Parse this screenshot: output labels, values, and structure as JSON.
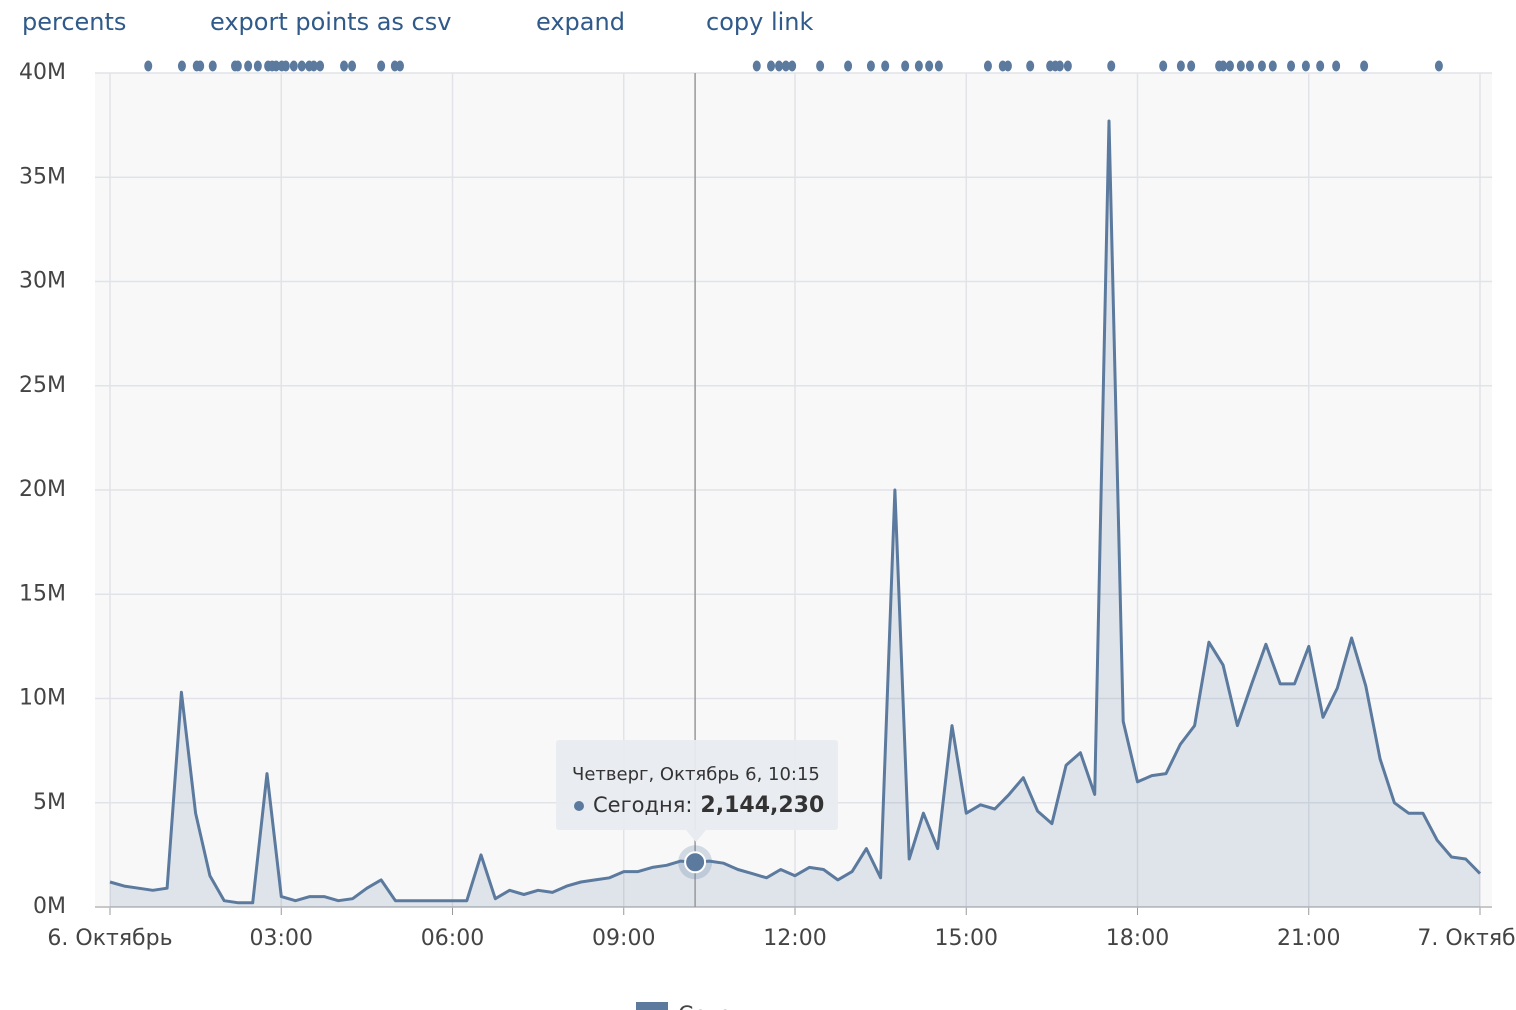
{
  "links": [
    "percents",
    "export points as csv",
    "expand",
    "copy link"
  ],
  "chart_data": {
    "type": "area",
    "x": [
      0,
      0.25,
      0.5,
      0.75,
      1,
      1.25,
      1.5,
      1.75,
      2,
      2.25,
      2.5,
      2.75,
      3,
      3.25,
      3.5,
      3.75,
      4,
      4.25,
      4.5,
      4.75,
      5,
      5.25,
      5.5,
      5.75,
      6,
      6.25,
      6.5,
      6.75,
      7,
      7.25,
      7.5,
      7.75,
      8,
      8.25,
      8.5,
      8.75,
      9,
      9.25,
      9.5,
      9.75,
      10,
      10.25,
      10.5,
      10.75,
      11,
      11.25,
      11.5,
      11.75,
      12,
      12.25,
      12.5,
      12.75,
      13,
      13.25,
      13.5,
      13.75,
      14,
      14.25,
      14.5,
      14.75,
      15,
      15.25,
      15.5,
      15.75,
      16,
      16.25,
      16.5,
      16.75,
      17,
      17.25,
      17.5,
      17.75,
      18,
      18.25,
      18.5,
      18.75,
      19,
      19.25,
      19.5,
      19.75,
      20,
      20.25,
      20.5,
      20.75,
      21,
      21.25,
      21.5,
      21.75,
      22,
      22.25,
      22.5,
      22.75,
      23,
      23.25,
      23.5,
      23.75,
      24
    ],
    "series": [
      {
        "name": "Сегодня",
        "color": "#5b7a9e",
        "values": [
          1200000,
          1000000,
          900000,
          800000,
          900000,
          10300000,
          4500000,
          1500000,
          300000,
          200000,
          200000,
          6400000,
          500000,
          300000,
          500000,
          500000,
          300000,
          400000,
          900000,
          1300000,
          300000,
          300000,
          300000,
          300000,
          300000,
          300000,
          2500000,
          400000,
          800000,
          600000,
          800000,
          700000,
          1000000,
          1200000,
          1300000,
          1400000,
          1700000,
          1700000,
          1900000,
          2000000,
          2200000,
          2144230,
          2200000,
          2100000,
          1800000,
          1600000,
          1400000,
          1800000,
          1500000,
          1900000,
          1800000,
          1300000,
          1700000,
          2800000,
          1400000,
          20000000,
          2300000,
          4500000,
          2800000,
          8700000,
          4500000,
          4900000,
          4700000,
          5400000,
          6200000,
          4600000,
          4000000,
          6800000,
          7400000,
          5400000,
          37700000,
          8900000,
          6000000,
          6300000,
          6400000,
          7800000,
          8700000,
          12700000,
          11600000,
          8700000,
          10700000,
          12600000,
          10700000,
          10700000,
          12500000,
          9100000,
          10500000,
          12900000,
          10600000,
          7100000,
          5000000,
          4500000,
          4500000,
          3200000,
          2400000,
          2300000,
          1600000
        ]
      }
    ],
    "markers": [
      0.67,
      1.26,
      1.52,
      1.58,
      1.8,
      2.19,
      2.24,
      2.42,
      2.59,
      2.77,
      2.84,
      2.91,
      3.01,
      3.08,
      3.22,
      3.36,
      3.49,
      3.57,
      3.68,
      4.1,
      4.24,
      4.75,
      4.99,
      5.08,
      11.33,
      11.58,
      11.72,
      11.84,
      11.95,
      12.44,
      12.93,
      13.33,
      13.58,
      13.93,
      14.17,
      14.35,
      14.52,
      15.38,
      15.64,
      15.73,
      16.12,
      16.47,
      16.56,
      16.64,
      16.78,
      17.54,
      18.45,
      18.76,
      18.94,
      19.43,
      19.5,
      19.62,
      19.81,
      19.97,
      20.18,
      20.37,
      20.69,
      20.95,
      21.2,
      21.48,
      21.97,
      23.28
    ],
    "xlim": [
      0,
      24
    ],
    "xticks": [
      {
        "value": 0,
        "label": "6. Октябрь"
      },
      {
        "value": 3,
        "label": "03:00"
      },
      {
        "value": 6,
        "label": "06:00"
      },
      {
        "value": 9,
        "label": "09:00"
      },
      {
        "value": 12,
        "label": "12:00"
      },
      {
        "value": 15,
        "label": "15:00"
      },
      {
        "value": 18,
        "label": "18:00"
      },
      {
        "value": 21,
        "label": "21:00"
      },
      {
        "value": 24,
        "label": "7. Октябрь"
      }
    ],
    "ylim": [
      0,
      40000000
    ],
    "yticks": [
      {
        "value": 0,
        "label": "0M"
      },
      {
        "value": 5000000,
        "label": "5M"
      },
      {
        "value": 10000000,
        "label": "10M"
      },
      {
        "value": 15000000,
        "label": "15M"
      },
      {
        "value": 20000000,
        "label": "20M"
      },
      {
        "value": 25000000,
        "label": "25M"
      },
      {
        "value": 30000000,
        "label": "30M"
      },
      {
        "value": 35000000,
        "label": "35M"
      },
      {
        "value": 40000000,
        "label": "40M"
      }
    ],
    "grid": true,
    "tooltip": {
      "x": 10.25,
      "header": "Четверг, Октябрь 6, 10:15",
      "label": "Сегодня:",
      "value_label": "2,144,230"
    }
  }
}
